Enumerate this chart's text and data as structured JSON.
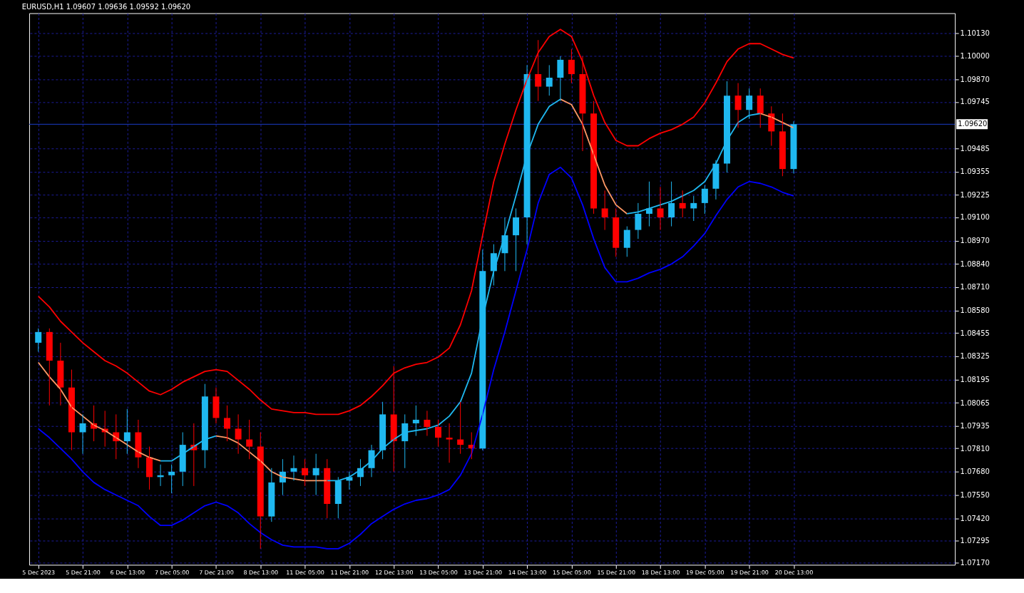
{
  "chart_data": {
    "type": "candlestick",
    "title": "EURUSD,H1  1.09607 1.09636 1.09592 1.09620",
    "categories": [
      "5 Dec 2023",
      null,
      null,
      null,
      "5 Dec 21:00",
      null,
      null,
      null,
      "6 Dec 13:00",
      null,
      null,
      null,
      "7 Dec 05:00",
      null,
      null,
      null,
      "7 Dec 21:00",
      null,
      null,
      null,
      "8 Dec 13:00",
      null,
      null,
      null,
      "11 Dec 05:00",
      null,
      null,
      null,
      "11 Dec 21:00",
      null,
      null,
      null,
      "12 Dec 13:00",
      null,
      null,
      null,
      "13 Dec 05:00",
      null,
      null,
      null,
      "13 Dec 21:00",
      null,
      null,
      null,
      "14 Dec 13:00",
      null,
      null,
      null,
      "15 Dec 05:00",
      null,
      null,
      null,
      "15 Dec 21:00",
      null,
      null,
      null,
      "18 Dec 13:00",
      null,
      null,
      null,
      "19 Dec 05:00",
      null,
      null,
      null,
      "19 Dec 21:00",
      null,
      null,
      null,
      "20 Dec 13:00"
    ],
    "ohlc": [
      [
        1.084,
        1.0848,
        1.0835,
        1.0846
      ],
      [
        1.0846,
        1.0848,
        1.0805,
        1.083
      ],
      [
        1.083,
        1.084,
        1.0805,
        1.0815
      ],
      [
        1.0815,
        1.0825,
        1.078,
        1.079
      ],
      [
        1.079,
        1.08,
        1.0778,
        1.0795
      ],
      [
        1.0795,
        1.0805,
        1.0785,
        1.0792
      ],
      [
        1.0792,
        1.0802,
        1.0782,
        1.079
      ],
      [
        1.079,
        1.08,
        1.0775,
        1.0785
      ],
      [
        1.0785,
        1.0803,
        1.0778,
        1.079
      ],
      [
        1.079,
        1.0797,
        1.077,
        1.0776
      ],
      [
        1.0776,
        1.0782,
        1.0758,
        1.0765
      ],
      [
        1.0765,
        1.0772,
        1.076,
        1.0766
      ],
      [
        1.0766,
        1.0772,
        1.0756,
        1.0768
      ],
      [
        1.0768,
        1.079,
        1.076,
        1.0783
      ],
      [
        1.0783,
        1.0795,
        1.076,
        1.078
      ],
      [
        1.078,
        1.0817,
        1.077,
        1.081
      ],
      [
        1.081,
        1.0815,
        1.0795,
        1.0798
      ],
      [
        1.0798,
        1.0805,
        1.0785,
        1.0792
      ],
      [
        1.0792,
        1.08,
        1.0778,
        1.0786
      ],
      [
        1.0786,
        1.0797,
        1.0775,
        1.0782
      ],
      [
        1.0782,
        1.079,
        1.0725,
        1.0743
      ],
      [
        1.0743,
        1.077,
        1.074,
        1.0762
      ],
      [
        1.0762,
        1.0775,
        1.0755,
        1.0768
      ],
      [
        1.0768,
        1.0777,
        1.0763,
        1.077
      ],
      [
        1.077,
        1.0775,
        1.076,
        1.0766
      ],
      [
        1.0766,
        1.0778,
        1.0755,
        1.077
      ],
      [
        1.077,
        1.0775,
        1.0742,
        1.075
      ],
      [
        1.075,
        1.0765,
        1.0742,
        1.0763
      ],
      [
        1.0763,
        1.0768,
        1.0758,
        1.0765
      ],
      [
        1.0765,
        1.0775,
        1.076,
        1.077
      ],
      [
        1.077,
        1.0783,
        1.0765,
        1.078
      ],
      [
        1.078,
        1.0807,
        1.0775,
        1.08
      ],
      [
        1.08,
        1.0827,
        1.0768,
        1.0785
      ],
      [
        1.0785,
        1.08,
        1.077,
        1.0795
      ],
      [
        1.0795,
        1.0805,
        1.0788,
        1.0797
      ],
      [
        1.0797,
        1.0802,
        1.0788,
        1.0793
      ],
      [
        1.0793,
        1.0797,
        1.0782,
        1.0787
      ],
      [
        1.0787,
        1.0795,
        1.0773,
        1.0786
      ],
      [
        1.0786,
        1.0807,
        1.0778,
        1.0783
      ],
      [
        1.0783,
        1.079,
        1.0775,
        1.0781
      ],
      [
        1.0781,
        1.0892,
        1.078,
        1.088
      ],
      [
        1.088,
        1.0895,
        1.0872,
        1.089
      ],
      [
        1.089,
        1.091,
        1.088,
        1.09
      ],
      [
        1.09,
        1.0915,
        1.088,
        1.091
      ],
      [
        1.091,
        1.0995,
        1.0895,
        1.099
      ],
      [
        1.099,
        1.1009,
        1.0975,
        1.0983
      ],
      [
        1.0983,
        1.0995,
        1.0978,
        1.0988
      ],
      [
        1.0988,
        1.1,
        1.0975,
        1.0998
      ],
      [
        1.0998,
        1.1004,
        1.0985,
        1.099
      ],
      [
        1.099,
        1.1,
        1.0947,
        1.0968
      ],
      [
        1.0968,
        1.0975,
        1.0912,
        1.0915
      ],
      [
        1.0915,
        1.0925,
        1.0903,
        1.091
      ],
      [
        1.091,
        1.0915,
        1.0888,
        1.0893
      ],
      [
        1.0893,
        1.0905,
        1.0888,
        1.0903
      ],
      [
        1.0903,
        1.0918,
        1.0898,
        1.0912
      ],
      [
        1.0912,
        1.093,
        1.0905,
        1.0915
      ],
      [
        1.0915,
        1.0927,
        1.0903,
        1.091
      ],
      [
        1.091,
        1.093,
        1.0905,
        1.0918
      ],
      [
        1.0918,
        1.0925,
        1.091,
        1.0915
      ],
      [
        1.0915,
        1.0922,
        1.0908,
        1.0918
      ],
      [
        1.0918,
        1.0928,
        1.0912,
        1.0926
      ],
      [
        1.0926,
        1.0942,
        1.092,
        1.094
      ],
      [
        1.094,
        1.0986,
        1.0935,
        1.0978
      ],
      [
        1.0978,
        1.0985,
        1.096,
        1.097
      ],
      [
        1.097,
        1.0982,
        1.0965,
        1.0978
      ],
      [
        1.0978,
        1.0982,
        1.096,
        1.0968
      ],
      [
        1.0968,
        1.0972,
        1.095,
        1.0958
      ],
      [
        1.0958,
        1.0968,
        1.0933,
        1.0937
      ],
      [
        1.0937,
        1.09636,
        1.09345,
        1.0962
      ]
    ],
    "colors": [
      "#1fb8f0",
      "#ff0000",
      "#ff0000",
      "#ff0000",
      "#1fb8f0",
      "#ff0000",
      "#ff0000",
      "#ff0000",
      "#1fb8f0",
      "#ff0000",
      "#ff0000",
      "#1fb8f0",
      "#1fb8f0",
      "#1fb8f0",
      "#ff0000",
      "#1fb8f0",
      "#ff0000",
      "#ff0000",
      "#ff0000",
      "#ff0000",
      "#ff0000",
      "#1fb8f0",
      "#1fb8f0",
      "#1fb8f0",
      "#ff0000",
      "#1fb8f0",
      "#ff0000",
      "#1fb8f0",
      "#1fb8f0",
      "#1fb8f0",
      "#1fb8f0",
      "#1fb8f0",
      "#ff0000",
      "#1fb8f0",
      "#1fb8f0",
      "#ff0000",
      "#ff0000",
      "#ff0000",
      "#ff0000",
      "#ff0000",
      "#1fb8f0",
      "#1fb8f0",
      "#1fb8f0",
      "#1fb8f0",
      "#1fb8f0",
      "#ff0000",
      "#1fb8f0",
      "#1fb8f0",
      "#ff0000",
      "#ff0000",
      "#ff0000",
      "#ff0000",
      "#ff0000",
      "#1fb8f0",
      "#1fb8f0",
      "#1fb8f0",
      "#ff0000",
      "#1fb8f0",
      "#ff0000",
      "#1fb8f0",
      "#1fb8f0",
      "#1fb8f0",
      "#1fb8f0",
      "#ff0000",
      "#1fb8f0",
      "#ff0000",
      "#ff0000",
      "#ff0000",
      "#1fb8f0"
    ],
    "series": [
      {
        "type": "line",
        "color": "#ff0000",
        "values": [
          1.0866,
          1.086,
          1.0852,
          1.0846,
          1.084,
          1.0835,
          1.083,
          1.0827,
          1.0823,
          1.0818,
          1.0813,
          1.0811,
          1.0814,
          1.0818,
          1.0821,
          1.0824,
          1.0825,
          1.0824,
          1.0819,
          1.0814,
          1.0808,
          1.0803,
          1.0802,
          1.0801,
          1.0801,
          1.08,
          1.08,
          1.08,
          1.0802,
          1.0805,
          1.081,
          1.0816,
          1.0823,
          1.0826,
          1.0828,
          1.0829,
          1.0832,
          1.0837,
          1.085,
          1.0869,
          1.09,
          1.093,
          1.0951,
          1.097,
          1.0987,
          1.1002,
          1.1011,
          1.1015,
          1.1011,
          1.0997,
          1.0978,
          1.0963,
          1.0953,
          1.095,
          1.095,
          1.0954,
          1.0957,
          1.0959,
          1.0962,
          1.0966,
          1.0974,
          1.0985,
          1.0997,
          1.1004,
          1.1007,
          1.1007,
          1.1004,
          1.1001,
          1.0999
        ]
      },
      {
        "type": "line",
        "color": "#ff9966",
        "values": [
          1.0829,
          1.0821,
          1.0814,
          1.0804,
          1.0799,
          1.0794,
          1.0791,
          1.0787,
          1.0783,
          1.0779,
          1.0776,
          1.0774,
          null,
          null,
          null,
          null,
          1.0788,
          1.0787,
          1.0784,
          1.0779,
          1.0774,
          1.0768,
          1.0765,
          1.0764,
          1.0763,
          1.0763,
          1.0763,
          null,
          null,
          null,
          null,
          null,
          null,
          null,
          null,
          null,
          null,
          null,
          null,
          null,
          null,
          null,
          null,
          null,
          null,
          null,
          null,
          1.0976,
          1.0973,
          1.0962,
          1.0945,
          1.0928,
          1.0917,
          1.0912,
          null,
          null,
          null,
          null,
          null,
          null,
          null,
          null,
          null,
          null,
          null,
          1.0968,
          1.0966,
          1.0963,
          1.096
        ]
      },
      {
        "type": "line",
        "color": "#1fb8f0",
        "values": [
          null,
          null,
          null,
          null,
          null,
          null,
          null,
          null,
          null,
          null,
          null,
          1.0774,
          1.0774,
          1.0778,
          1.0782,
          1.0786,
          1.0788,
          null,
          null,
          null,
          null,
          null,
          null,
          null,
          null,
          null,
          1.0763,
          1.0763,
          1.0765,
          1.0769,
          1.0774,
          1.0781,
          1.0786,
          1.079,
          1.0791,
          1.0792,
          1.0794,
          1.0799,
          1.0807,
          1.0823,
          1.0854,
          1.088,
          1.09,
          1.0922,
          1.0945,
          1.0962,
          1.0972,
          1.0976,
          null,
          null,
          null,
          null,
          null,
          1.0912,
          1.0913,
          1.0915,
          1.0917,
          1.0919,
          1.0922,
          1.0925,
          1.093,
          1.094,
          1.0953,
          1.0963,
          1.0967,
          1.0968,
          null,
          null,
          null
        ]
      },
      {
        "type": "line",
        "color": "#0000ff",
        "values": [
          1.0792,
          1.0787,
          1.0781,
          1.0775,
          1.0768,
          1.0762,
          1.0758,
          1.0755,
          1.0752,
          1.0749,
          1.0743,
          1.0738,
          1.0738,
          1.0741,
          1.0745,
          1.0749,
          1.0751,
          1.0749,
          1.0745,
          1.0739,
          1.0734,
          1.073,
          1.0727,
          1.0726,
          1.0726,
          1.0726,
          1.0725,
          1.0725,
          1.0728,
          1.0733,
          1.0739,
          1.0743,
          1.0747,
          1.075,
          1.0752,
          1.0753,
          1.0755,
          1.0758,
          1.0766,
          1.0778,
          1.08,
          1.0825,
          1.0846,
          1.0869,
          1.0892,
          1.0918,
          1.0934,
          1.0938,
          1.0932,
          1.0917,
          1.0898,
          1.0882,
          1.0874,
          1.0874,
          1.0876,
          1.0879,
          1.0881,
          1.0884,
          1.0888,
          1.0894,
          1.0901,
          1.0911,
          1.092,
          1.0927,
          1.093,
          1.0929,
          1.0927,
          1.0924,
          1.0922
        ]
      }
    ],
    "ylim": [
      1.0716,
      1.1024
    ],
    "yticks": [
      {
        "value": 1.0717,
        "label": "1.07170"
      },
      {
        "value": 1.07295,
        "label": "1.07295"
      },
      {
        "value": 1.0742,
        "label": "1.07420"
      },
      {
        "value": 1.0755,
        "label": "1.07550"
      },
      {
        "value": 1.0768,
        "label": "1.07680"
      },
      {
        "value": 1.0781,
        "label": "1.07810"
      },
      {
        "value": 1.07935,
        "label": "1.07935"
      },
      {
        "value": 1.08065,
        "label": "1.08065"
      },
      {
        "value": 1.08195,
        "label": "1.08195"
      },
      {
        "value": 1.08325,
        "label": "1.08325"
      },
      {
        "value": 1.08455,
        "label": "1.08455"
      },
      {
        "value": 1.0858,
        "label": "1.08580"
      },
      {
        "value": 1.0871,
        "label": "1.08710"
      },
      {
        "value": 1.0884,
        "label": "1.08840"
      },
      {
        "value": 1.0897,
        "label": "1.08970"
      },
      {
        "value": 1.091,
        "label": "1.09100"
      },
      {
        "value": 1.09225,
        "label": "1.09225"
      },
      {
        "value": 1.09355,
        "label": "1.09355"
      },
      {
        "value": 1.09485,
        "label": "1.09485"
      },
      {
        "value": 1.09745,
        "label": "1.09745"
      },
      {
        "value": 1.0987,
        "label": "1.09870"
      },
      {
        "value": 1.1,
        "label": "1.10000"
      },
      {
        "value": 1.1013,
        "label": "1.10130"
      }
    ],
    "ref_lines": [
      {
        "axis": "y",
        "value": 1.0962,
        "label": "1.09620",
        "color": "#1a3cc8",
        "line_style": "solid"
      }
    ],
    "grid": true
  }
}
